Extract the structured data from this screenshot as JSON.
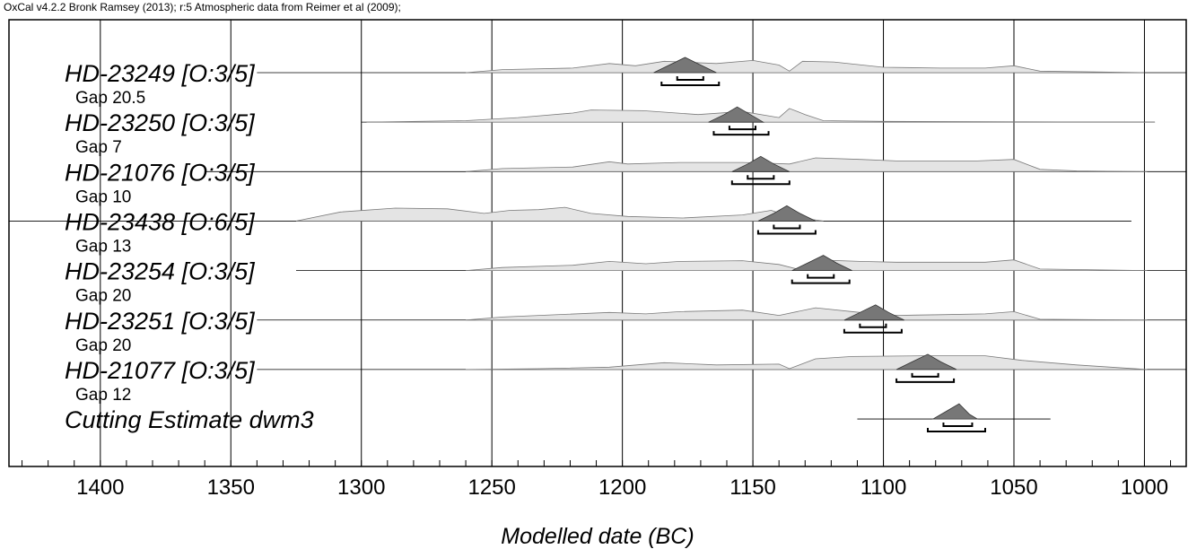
{
  "chart_data": {
    "type": "oxcal",
    "caption": "OxCal v4.2.2 Bronk Ramsey (2013); r:5 Atmospheric data from Reimer et al (2009);",
    "x_label": "Modelled date (BC)",
    "xlim": [
      1435,
      984
    ],
    "xticks": [
      1400,
      1350,
      1300,
      1250,
      1200,
      1150,
      1100,
      1050,
      1000
    ],
    "xminorticks": [
      1430,
      1420,
      1410,
      1400,
      1390,
      1380,
      1370,
      1360,
      1350,
      1340,
      1330,
      1320,
      1310,
      1300,
      1290,
      1280,
      1270,
      1260,
      1250,
      1240,
      1230,
      1220,
      1210,
      1200,
      1190,
      1180,
      1170,
      1160,
      1150,
      1140,
      1130,
      1120,
      1110,
      1100,
      1090,
      1080,
      1070,
      1060,
      1050,
      1040,
      1030,
      1020,
      1010,
      1000,
      990
    ],
    "grid": true,
    "prior_color": "#e4e4e4",
    "posterior_color": "#777777",
    "rows": [
      {
        "name": "HD-23249 [O:3/5]",
        "gap": "Gap 20.5",
        "line": [
          1340,
          984
        ],
        "prior_x": [
          1260,
          1246,
          1219,
          1205,
          1195,
          1184,
          1164,
          1150,
          1140,
          1136,
          1131,
          1119,
          1100,
          1078,
          1061,
          1050,
          1040,
          1000
        ],
        "prior_y": [
          0,
          0.2,
          0.3,
          0.6,
          0.45,
          0.75,
          0.6,
          0.8,
          0.5,
          0.1,
          0.75,
          0.7,
          0.35,
          0.3,
          0.3,
          0.45,
          0.1,
          0
        ],
        "post_x": [
          1188,
          1182,
          1176,
          1170,
          1164
        ],
        "post_y": [
          0,
          0.5,
          1,
          0.5,
          0
        ],
        "range68": [
          1179,
          1169
        ],
        "range95": [
          1185,
          1163
        ]
      },
      {
        "name": "HD-23250 [O:3/5]",
        "gap": "Gap 7",
        "line": [
          1300,
          996
        ],
        "prior_x": [
          1298,
          1260,
          1240,
          1219,
          1212,
          1192,
          1171,
          1154,
          1140,
          1136,
          1130,
          1123,
          1100,
          1050,
          996
        ],
        "prior_y": [
          0,
          0.1,
          0.3,
          0.6,
          0.8,
          0.75,
          0.5,
          0.7,
          0.3,
          0.9,
          0.5,
          0.1,
          0.05,
          0.02,
          0
        ],
        "post_x": [
          1167,
          1161,
          1156,
          1151,
          1146
        ],
        "post_y": [
          0,
          0.5,
          1,
          0.5,
          0
        ],
        "range68": [
          1159,
          1149
        ],
        "range95": [
          1165,
          1144
        ]
      },
      {
        "name": "HD-21076 [O:3/5]",
        "gap": "Gap 10",
        "line": [
          1360,
          984
        ],
        "prior_x": [
          1260,
          1246,
          1219,
          1205,
          1198,
          1178,
          1154,
          1136,
          1126,
          1109,
          1095,
          1064,
          1050,
          1040,
          1026,
          999
        ],
        "prior_y": [
          0,
          0.2,
          0.3,
          0.65,
          0.5,
          0.6,
          0.6,
          0.5,
          0.9,
          0.8,
          0.7,
          0.7,
          0.8,
          0.15,
          0.05,
          0
        ],
        "post_x": [
          1158,
          1152,
          1147,
          1142,
          1136
        ],
        "post_y": [
          0,
          0.5,
          1,
          0.5,
          0
        ],
        "range68": [
          1152,
          1142
        ],
        "range95": [
          1158,
          1136
        ]
      },
      {
        "name": "HD-23438 [O:6/5]",
        "gap": "Gap 13",
        "line": [
          1435,
          1005
        ],
        "prior_x": [
          1325,
          1308,
          1287,
          1267,
          1253,
          1243,
          1232,
          1222,
          1212,
          1198,
          1177,
          1154,
          1143,
          1136,
          1123
        ],
        "prior_y": [
          0,
          0.6,
          0.85,
          0.8,
          0.5,
          0.7,
          0.75,
          0.9,
          0.5,
          0.3,
          0.2,
          0.4,
          0.7,
          0.3,
          0
        ],
        "post_x": [
          1148,
          1142,
          1137,
          1132,
          1126
        ],
        "post_y": [
          0,
          0.5,
          1,
          0.5,
          0
        ],
        "range68": [
          1142,
          1132
        ],
        "range95": [
          1148,
          1126
        ]
      },
      {
        "name": "HD-23254 [O:3/5]",
        "gap": "Gap 20",
        "line": [
          1325,
          984
        ],
        "prior_x": [
          1260,
          1246,
          1219,
          1205,
          1191,
          1178,
          1154,
          1140,
          1133,
          1126,
          1109,
          1095,
          1061,
          1050,
          1040,
          999
        ],
        "prior_y": [
          0,
          0.2,
          0.35,
          0.6,
          0.45,
          0.6,
          0.65,
          0.4,
          0.1,
          0.7,
          0.6,
          0.55,
          0.55,
          0.7,
          0.1,
          0
        ],
        "post_x": [
          1135,
          1129,
          1123,
          1118,
          1112
        ],
        "post_y": [
          0,
          0.5,
          1,
          0.5,
          0
        ],
        "range68": [
          1129,
          1119
        ],
        "range95": [
          1135,
          1113
        ]
      },
      {
        "name": "HD-23251 [O:3/5]",
        "gap": "Gap 20",
        "line": [
          1340,
          984
        ],
        "prior_x": [
          1260,
          1246,
          1205,
          1191,
          1178,
          1154,
          1140,
          1126,
          1109,
          1095,
          1078,
          1061,
          1050,
          1040,
          999
        ],
        "prior_y": [
          0,
          0.2,
          0.5,
          0.4,
          0.55,
          0.65,
          0.3,
          0.8,
          0.5,
          0.3,
          0.35,
          0.4,
          0.55,
          0.05,
          0
        ],
        "post_x": [
          1115,
          1109,
          1103,
          1098,
          1092
        ],
        "post_y": [
          0,
          0.5,
          1,
          0.5,
          0
        ],
        "range68": [
          1109,
          1099
        ],
        "range95": [
          1115,
          1093
        ]
      },
      {
        "name": "HD-21077 [O:3/5]",
        "gap": "Gap 12",
        "line": [
          1340,
          984
        ],
        "prior_x": [
          1260,
          1232,
          1205,
          1184,
          1164,
          1140,
          1136,
          1126,
          1112,
          1085,
          1061,
          1047,
          1026,
          999
        ],
        "prior_y": [
          0,
          0.05,
          0.15,
          0.45,
          0.3,
          0.35,
          0.05,
          0.7,
          0.85,
          0.9,
          0.9,
          0.6,
          0.3,
          0
        ],
        "post_x": [
          1095,
          1089,
          1083,
          1078,
          1072
        ],
        "post_y": [
          0,
          0.5,
          1,
          0.5,
          0
        ],
        "range68": [
          1089,
          1079
        ],
        "range95": [
          1095,
          1073
        ]
      },
      {
        "name": "Cutting Estimate dwm3",
        "line": [
          1110,
          1036
        ],
        "post_x": [
          1081,
          1076,
          1071,
          1067,
          1064
        ],
        "post_y": [
          0,
          0.5,
          1,
          0.3,
          0
        ],
        "range68": [
          1077,
          1066
        ],
        "range95": [
          1083,
          1061
        ]
      }
    ]
  }
}
